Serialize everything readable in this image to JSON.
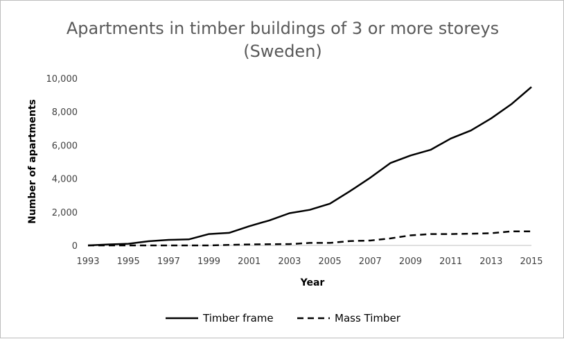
{
  "chart_data": {
    "type": "line",
    "title": "Apartments in timber buildings of 3 or more storeys",
    "subtitle": "(Sweden)",
    "xlabel": "Year",
    "ylabel": "Number of apartments",
    "x": [
      1993,
      1994,
      1995,
      1996,
      1997,
      1998,
      1999,
      2000,
      2001,
      2002,
      2003,
      2004,
      2005,
      2006,
      2007,
      2008,
      2009,
      2010,
      2011,
      2012,
      2013,
      2014,
      2015
    ],
    "x_tick_labels": [
      "1993",
      "1995",
      "1997",
      "1999",
      "2001",
      "2003",
      "2005",
      "2007",
      "2009",
      "2011",
      "2013",
      "2015"
    ],
    "y_tick_labels": [
      "0",
      "2,000",
      "4,000",
      "6,000",
      "8,000",
      "10,000"
    ],
    "ylim": [
      0,
      10000
    ],
    "xlim": [
      1993,
      2015
    ],
    "grid": false,
    "legend_position": "bottom",
    "series": [
      {
        "name": "Timber frame",
        "style": "solid",
        "color": "#000000",
        "values": [
          0,
          60,
          100,
          250,
          330,
          360,
          680,
          750,
          1150,
          1500,
          1930,
          2130,
          2500,
          3250,
          4050,
          4930,
          5380,
          5720,
          6400,
          6880,
          7600,
          8450,
          9480
        ]
      },
      {
        "name": "Mass Timber",
        "style": "dashed",
        "color": "#000000",
        "values": [
          0,
          0,
          0,
          0,
          0,
          0,
          0,
          30,
          60,
          70,
          80,
          150,
          150,
          260,
          290,
          420,
          600,
          680,
          680,
          700,
          730,
          840,
          840
        ]
      }
    ]
  }
}
